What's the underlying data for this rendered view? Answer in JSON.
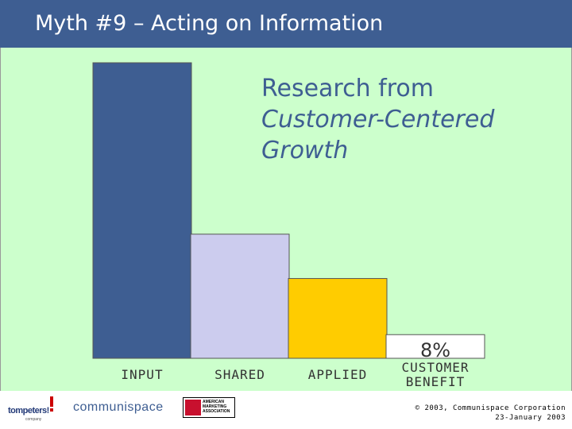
{
  "slide": {
    "title": "Myth #9 – Acting on Information"
  },
  "chart_data": {
    "type": "bar",
    "title_lines": [
      "Research from",
      "Customer-Centered",
      "Growth"
    ],
    "categories": [
      "INPUT",
      "SHARED",
      "APPLIED",
      "CUSTOMER BENEFIT"
    ],
    "category_lines": [
      [
        "INPUT"
      ],
      [
        "SHARED"
      ],
      [
        "APPLIED"
      ],
      [
        "CUSTOMER",
        "BENEFIT"
      ]
    ],
    "values": [
      100,
      42,
      27,
      8
    ],
    "data_labels": [
      "",
      "",
      "",
      "8%"
    ],
    "ylim": [
      0,
      100
    ],
    "colors": [
      "#3e5e92",
      "#ccccee",
      "#ffcc00",
      "#ffffff"
    ],
    "grid": false,
    "legend": "none"
  },
  "footer": {
    "logo_tompeters": "tompeters!",
    "logo_tompeters_sub": "company",
    "logo_communispace": "communispace",
    "logo_ama": "AMERICAN MARKETING ASSOCIATION",
    "copyright_line1": "© 2003, Communispace Corporation",
    "copyright_line2": "23-January 2003"
  }
}
